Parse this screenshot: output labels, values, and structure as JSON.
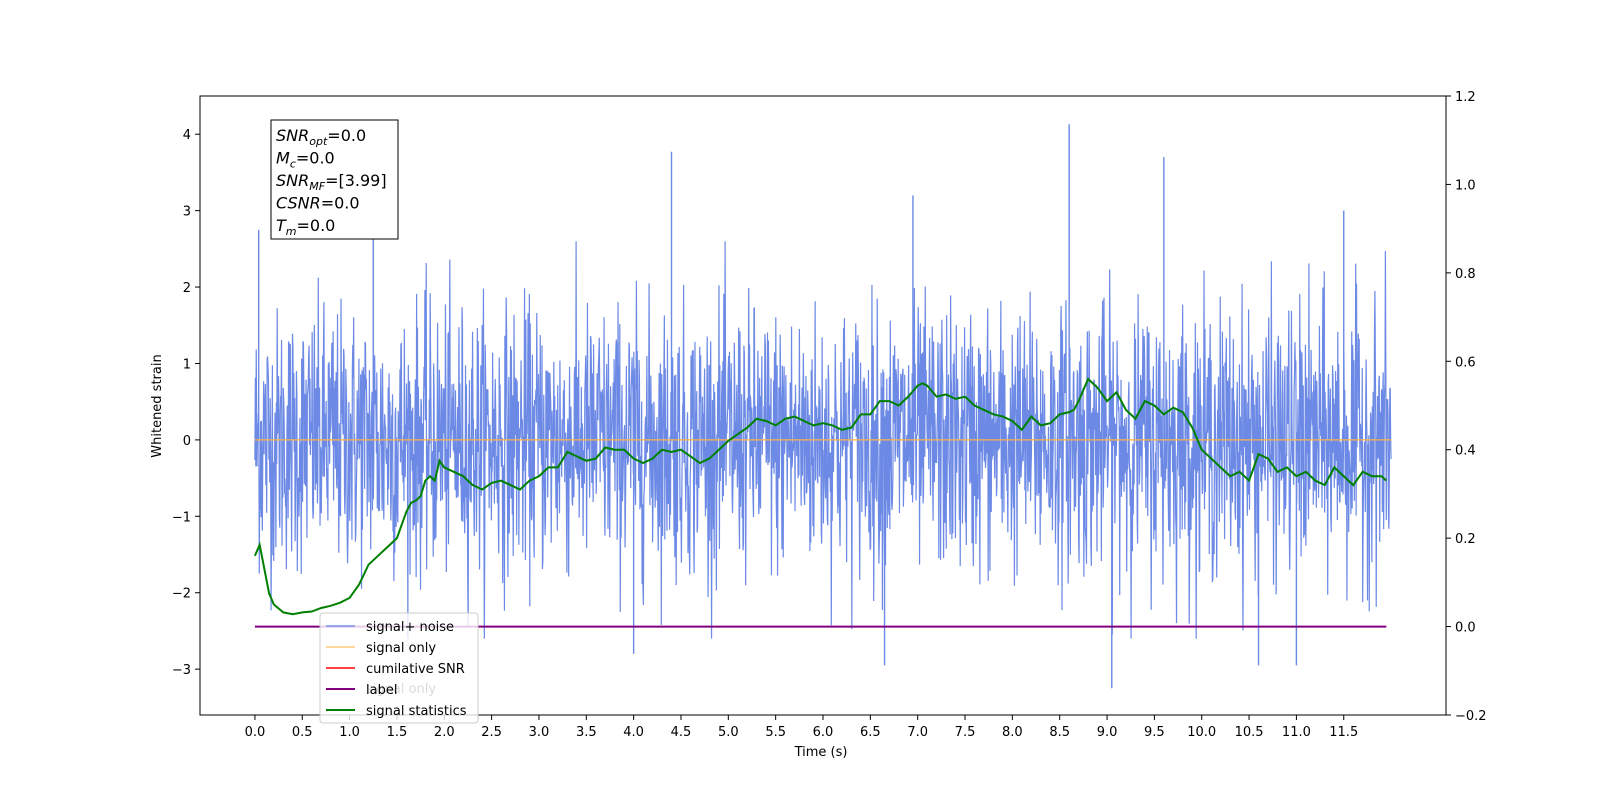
{
  "chart_data": {
    "type": "line",
    "xlabel": "Time (s)",
    "ylabel_left": "Whitened strain",
    "ylabel_right": "",
    "xlim": [
      -0.58,
      12.58
    ],
    "ylim_left": [
      -3.6,
      4.5
    ],
    "ylim_right": [
      -0.2,
      1.2
    ],
    "x_ticks": [
      "0.0",
      "0.5",
      "1.0",
      "1.5",
      "2.0",
      "2.5",
      "3.0",
      "3.5",
      "4.0",
      "4.5",
      "5.0",
      "5.5",
      "6.0",
      "6.5",
      "7.0",
      "7.5",
      "8.0",
      "8.5",
      "9.0",
      "9.5",
      "10.0",
      "10.5",
      "11.0",
      "11.5"
    ],
    "y_ticks_left": [
      "−3",
      "−2",
      "−1",
      "0",
      "1",
      "2",
      "3",
      "4"
    ],
    "y_ticks_right": [
      "−0.2",
      "0.0",
      "0.2",
      "0.4",
      "0.6",
      "0.8",
      "1.0",
      "1.2"
    ],
    "grid": false,
    "legend_position": "lower-left",
    "colors": {
      "signal_noise": "#6b89e5",
      "signal_only": "#ffb347",
      "cumulative_snr": "#ff0000",
      "label": "#800080",
      "signal_statistics": "#008000"
    },
    "series": [
      {
        "name": "signal+ noise",
        "axis": "left",
        "x_range": [
          0.0,
          12.0
        ],
        "description_values": "white noise, amplitude mostly within [-2.5, 2.5]",
        "notable_peaks": [
          [
            0.04,
            2.75
          ],
          [
            1.25,
            2.9
          ],
          [
            4.4,
            3.77
          ],
          [
            6.95,
            3.2
          ],
          [
            8.6,
            4.13
          ],
          [
            9.6,
            3.7
          ],
          [
            11.5,
            3.0
          ],
          [
            9.05,
            -3.25
          ],
          [
            11.0,
            -2.95
          ],
          [
            10.6,
            -2.95
          ],
          [
            6.65,
            -2.95
          ],
          [
            4.0,
            -2.8
          ]
        ]
      },
      {
        "name": "signal only",
        "axis": "left",
        "x": [
          0.0,
          12.0
        ],
        "y": [
          0.0,
          0.0
        ]
      },
      {
        "name": "cumilative SNR",
        "axis": "right",
        "x": [],
        "y": []
      },
      {
        "name": "label",
        "axis": "right",
        "x": [
          0.0,
          11.95
        ],
        "y": [
          0.0,
          0.0
        ]
      },
      {
        "name": "signal statistics",
        "axis": "right",
        "x": [
          0.0,
          0.05,
          0.1,
          0.15,
          0.2,
          0.3,
          0.4,
          0.5,
          0.6,
          0.7,
          0.8,
          0.9,
          1.0,
          1.1,
          1.2,
          1.3,
          1.4,
          1.5,
          1.55,
          1.6,
          1.65,
          1.7,
          1.75,
          1.8,
          1.85,
          1.9,
          1.95,
          2.0,
          2.1,
          2.2,
          2.3,
          2.4,
          2.5,
          2.6,
          2.7,
          2.8,
          2.9,
          3.0,
          3.1,
          3.2,
          3.3,
          3.4,
          3.5,
          3.6,
          3.7,
          3.8,
          3.9,
          4.0,
          4.1,
          4.2,
          4.3,
          4.4,
          4.5,
          4.6,
          4.7,
          4.8,
          4.9,
          5.0,
          5.1,
          5.2,
          5.3,
          5.4,
          5.5,
          5.6,
          5.7,
          5.8,
          5.9,
          6.0,
          6.1,
          6.2,
          6.3,
          6.4,
          6.5,
          6.6,
          6.7,
          6.8,
          6.9,
          7.0,
          7.05,
          7.1,
          7.2,
          7.3,
          7.4,
          7.5,
          7.6,
          7.7,
          7.8,
          7.9,
          8.0,
          8.05,
          8.1,
          8.2,
          8.3,
          8.4,
          8.5,
          8.6,
          8.65,
          8.7,
          8.8,
          8.9,
          9.0,
          9.1,
          9.2,
          9.3,
          9.4,
          9.5,
          9.6,
          9.7,
          9.8,
          9.9,
          10.0,
          10.1,
          10.2,
          10.3,
          10.4,
          10.5,
          10.6,
          10.7,
          10.8,
          10.9,
          11.0,
          11.1,
          11.2,
          11.3,
          11.4,
          11.5,
          11.6,
          11.7,
          11.8,
          11.9,
          11.95
        ],
        "y": [
          0.16,
          0.185,
          0.13,
          0.075,
          0.05,
          0.032,
          0.028,
          0.032,
          0.034,
          0.042,
          0.047,
          0.054,
          0.065,
          0.095,
          0.14,
          0.16,
          0.18,
          0.2,
          0.23,
          0.26,
          0.28,
          0.285,
          0.295,
          0.33,
          0.34,
          0.33,
          0.375,
          0.36,
          0.35,
          0.34,
          0.32,
          0.31,
          0.325,
          0.33,
          0.32,
          0.31,
          0.33,
          0.34,
          0.36,
          0.36,
          0.395,
          0.385,
          0.375,
          0.38,
          0.405,
          0.4,
          0.4,
          0.38,
          0.37,
          0.38,
          0.4,
          0.395,
          0.4,
          0.385,
          0.37,
          0.38,
          0.4,
          0.42,
          0.435,
          0.45,
          0.47,
          0.465,
          0.455,
          0.47,
          0.475,
          0.465,
          0.455,
          0.46,
          0.455,
          0.445,
          0.45,
          0.48,
          0.48,
          0.51,
          0.51,
          0.5,
          0.52,
          0.545,
          0.55,
          0.545,
          0.52,
          0.525,
          0.515,
          0.52,
          0.5,
          0.49,
          0.48,
          0.475,
          0.465,
          0.455,
          0.445,
          0.475,
          0.455,
          0.46,
          0.48,
          0.485,
          0.49,
          0.51,
          0.56,
          0.54,
          0.51,
          0.53,
          0.49,
          0.47,
          0.51,
          0.5,
          0.48,
          0.495,
          0.485,
          0.45,
          0.4,
          0.38,
          0.36,
          0.34,
          0.35,
          0.33,
          0.39,
          0.38,
          0.35,
          0.36,
          0.34,
          0.35,
          0.33,
          0.32,
          0.36,
          0.34,
          0.32,
          0.35,
          0.34,
          0.34,
          0.33
        ]
      }
    ],
    "legend": [
      "signal+ noise",
      "signal only",
      "cumilative SNR",
      "label",
      "signal statistics"
    ],
    "legend_overlap_text": "signal only",
    "info_box": [
      {
        "base": "SNR",
        "sub": "opt",
        "rest": "=0.0"
      },
      {
        "base": "M",
        "sub": "c",
        "rest": "=0.0"
      },
      {
        "base": "SNR",
        "sub": "MF",
        "rest": "=[3.99]"
      },
      {
        "base": "CSNR",
        "sub": "",
        "rest": "=0.0"
      },
      {
        "base": "T",
        "sub": "m",
        "rest": "=0.0"
      }
    ]
  }
}
